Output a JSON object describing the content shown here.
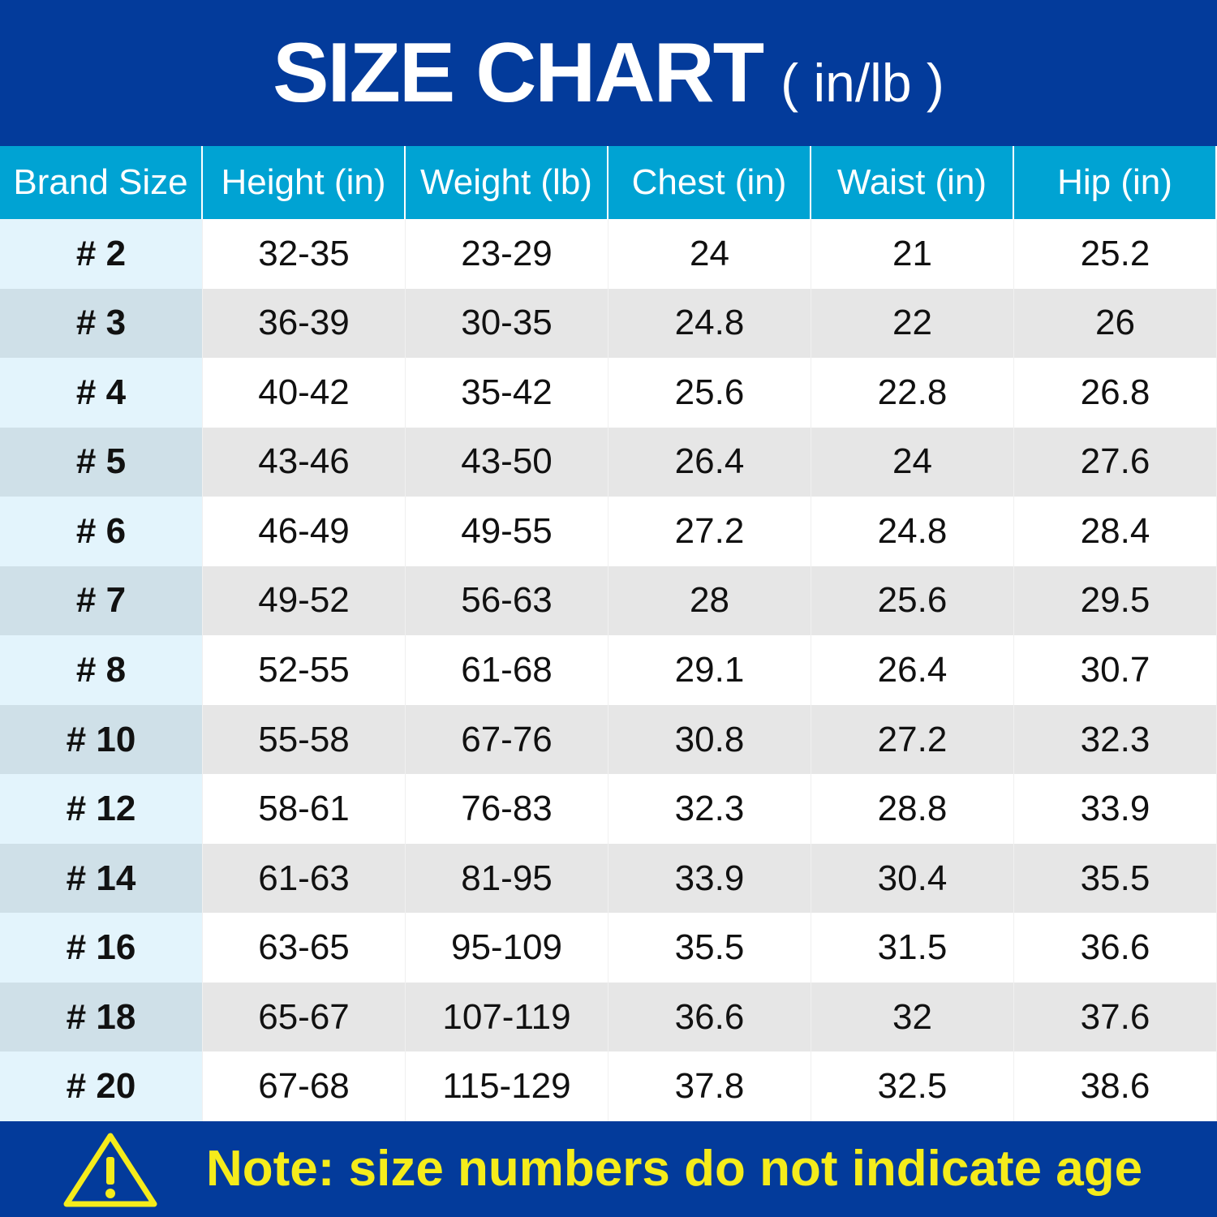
{
  "header": {
    "title": "SIZE CHART",
    "subtitle": "( in/lb )"
  },
  "table": {
    "columns": [
      "Brand Size",
      "Height (in)",
      "Weight (lb)",
      "Chest (in)",
      "Waist (in)",
      "Hip (in)"
    ],
    "rows": [
      [
        "# 2",
        "32-35",
        "23-29",
        "24",
        "21",
        "25.2"
      ],
      [
        "# 3",
        "36-39",
        "30-35",
        "24.8",
        "22",
        "26"
      ],
      [
        "# 4",
        "40-42",
        "35-42",
        "25.6",
        "22.8",
        "26.8"
      ],
      [
        "# 5",
        "43-46",
        "43-50",
        "26.4",
        "24",
        "27.6"
      ],
      [
        "# 6",
        "46-49",
        "49-55",
        "27.2",
        "24.8",
        "28.4"
      ],
      [
        "# 7",
        "49-52",
        "56-63",
        "28",
        "25.6",
        "29.5"
      ],
      [
        "# 8",
        "52-55",
        "61-68",
        "29.1",
        "26.4",
        "30.7"
      ],
      [
        "# 10",
        "55-58",
        "67-76",
        "30.8",
        "27.2",
        "32.3"
      ],
      [
        "# 12",
        "58-61",
        "76-83",
        "32.3",
        "28.8",
        "33.9"
      ],
      [
        "# 14",
        "61-63",
        "81-95",
        "33.9",
        "30.4",
        "35.5"
      ],
      [
        "# 16",
        "63-65",
        "95-109",
        "35.5",
        "31.5",
        "36.6"
      ],
      [
        "# 18",
        "65-67",
        "107-119",
        "36.6",
        "32",
        "37.6"
      ],
      [
        "# 20",
        "67-68",
        "115-129",
        "37.8",
        "32.5",
        "38.6"
      ]
    ]
  },
  "note": {
    "text": "Note: size numbers do not indicate age"
  }
}
